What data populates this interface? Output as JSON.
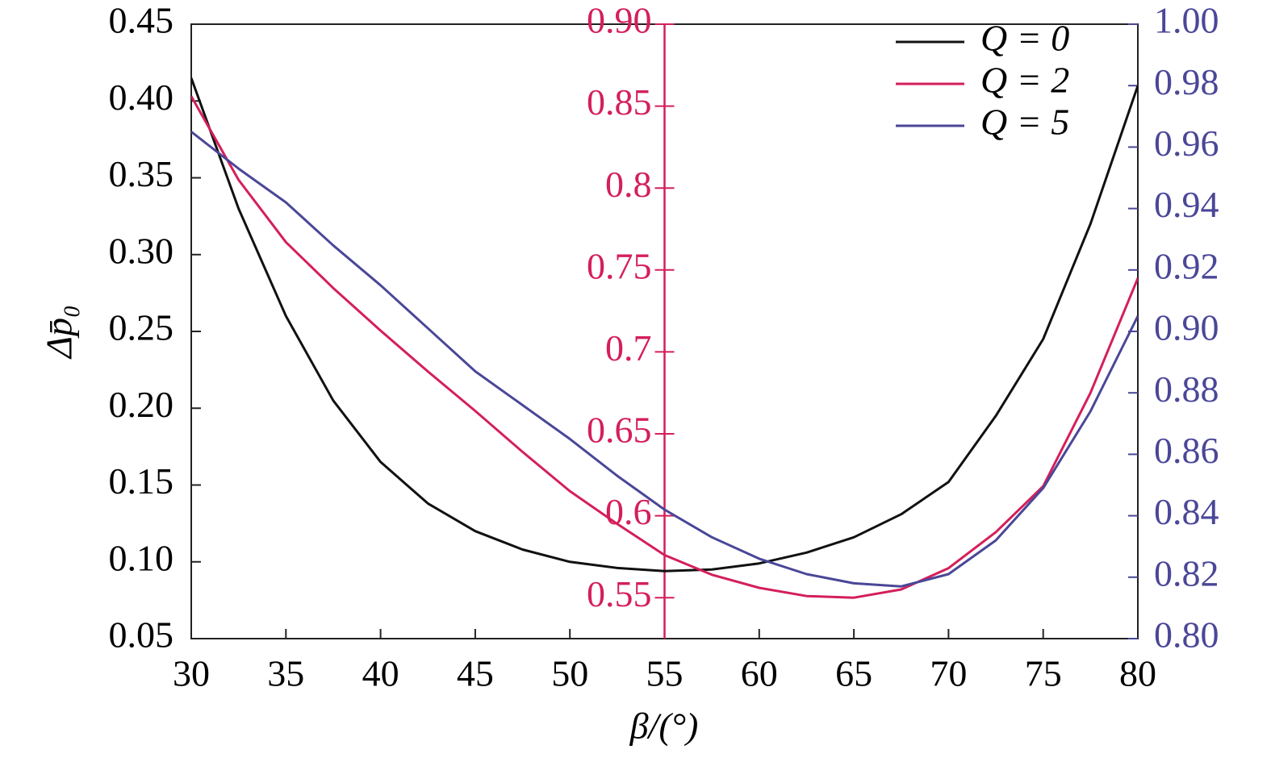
{
  "chart_data": {
    "type": "line",
    "x_label": "β/(°)",
    "y_label": "Δp̄₀",
    "x": [
      30,
      32.5,
      35,
      37.5,
      40,
      42.5,
      45,
      47.5,
      50,
      52.5,
      55,
      57.5,
      60,
      62.5,
      65,
      67.5,
      70,
      72.5,
      75,
      77.5,
      80
    ],
    "xlim": [
      30,
      80
    ],
    "xticks": [
      30,
      35,
      40,
      45,
      50,
      55,
      60,
      65,
      70,
      75,
      80
    ],
    "ylim": [
      0.05,
      0.45
    ],
    "yticks": [
      {
        "value": 0.05,
        "label": "0.05"
      },
      {
        "value": 0.1,
        "label": "0.10"
      },
      {
        "value": 0.15,
        "label": "0.15"
      },
      {
        "value": 0.2,
        "label": "0.20"
      },
      {
        "value": 0.25,
        "label": "0.25"
      },
      {
        "value": 0.3,
        "label": "0.30"
      },
      {
        "value": 0.35,
        "label": "0.35"
      },
      {
        "value": 0.4,
        "label": "0.40"
      },
      {
        "value": 0.45,
        "label": "0.45"
      }
    ],
    "y3lim": [
      0.525,
      0.9
    ],
    "y3ticks": [
      0.55,
      0.6,
      0.65,
      0.7,
      0.75,
      0.8,
      0.85,
      {
        "value": 0.9,
        "label": "0.90"
      }
    ],
    "y3_color": "#d41f5a",
    "y3_position": 55,
    "y2lim": [
      0.8,
      1.0
    ],
    "y2ticks": [
      {
        "value": 0.8,
        "label": "0.80"
      },
      0.82,
      0.84,
      0.86,
      0.88,
      {
        "value": 0.9,
        "label": "0.90"
      },
      0.92,
      0.94,
      0.96,
      0.98,
      {
        "value": 1.0,
        "label": "1.00"
      }
    ],
    "y2_color": "#4a4798",
    "series": [
      {
        "name": "Q = 0",
        "color": "#111111",
        "axis": "y",
        "values": [
          0.415,
          0.33,
          0.26,
          0.205,
          0.165,
          0.138,
          0.12,
          0.108,
          0.1,
          0.096,
          0.094,
          0.095,
          0.099,
          0.106,
          0.116,
          0.131,
          0.152,
          0.195,
          0.245,
          0.32,
          0.41
        ]
      },
      {
        "name": "Q = 2",
        "color": "#d41f5a",
        "axis": "y3",
        "values": [
          0.856,
          0.805,
          0.767,
          0.739,
          0.713,
          0.688,
          0.664,
          0.639,
          0.615,
          0.595,
          0.576,
          0.564,
          0.556,
          0.551,
          0.55,
          0.555,
          0.568,
          0.59,
          0.618,
          0.675,
          0.745
        ]
      },
      {
        "name": "Q = 5",
        "color": "#4a4798",
        "axis": "y2",
        "values": [
          0.965,
          0.953,
          0.942,
          0.928,
          0.915,
          0.901,
          0.887,
          0.876,
          0.865,
          0.853,
          0.842,
          0.833,
          0.826,
          0.821,
          0.818,
          0.817,
          0.821,
          0.832,
          0.849,
          0.874,
          0.905
        ]
      }
    ]
  }
}
